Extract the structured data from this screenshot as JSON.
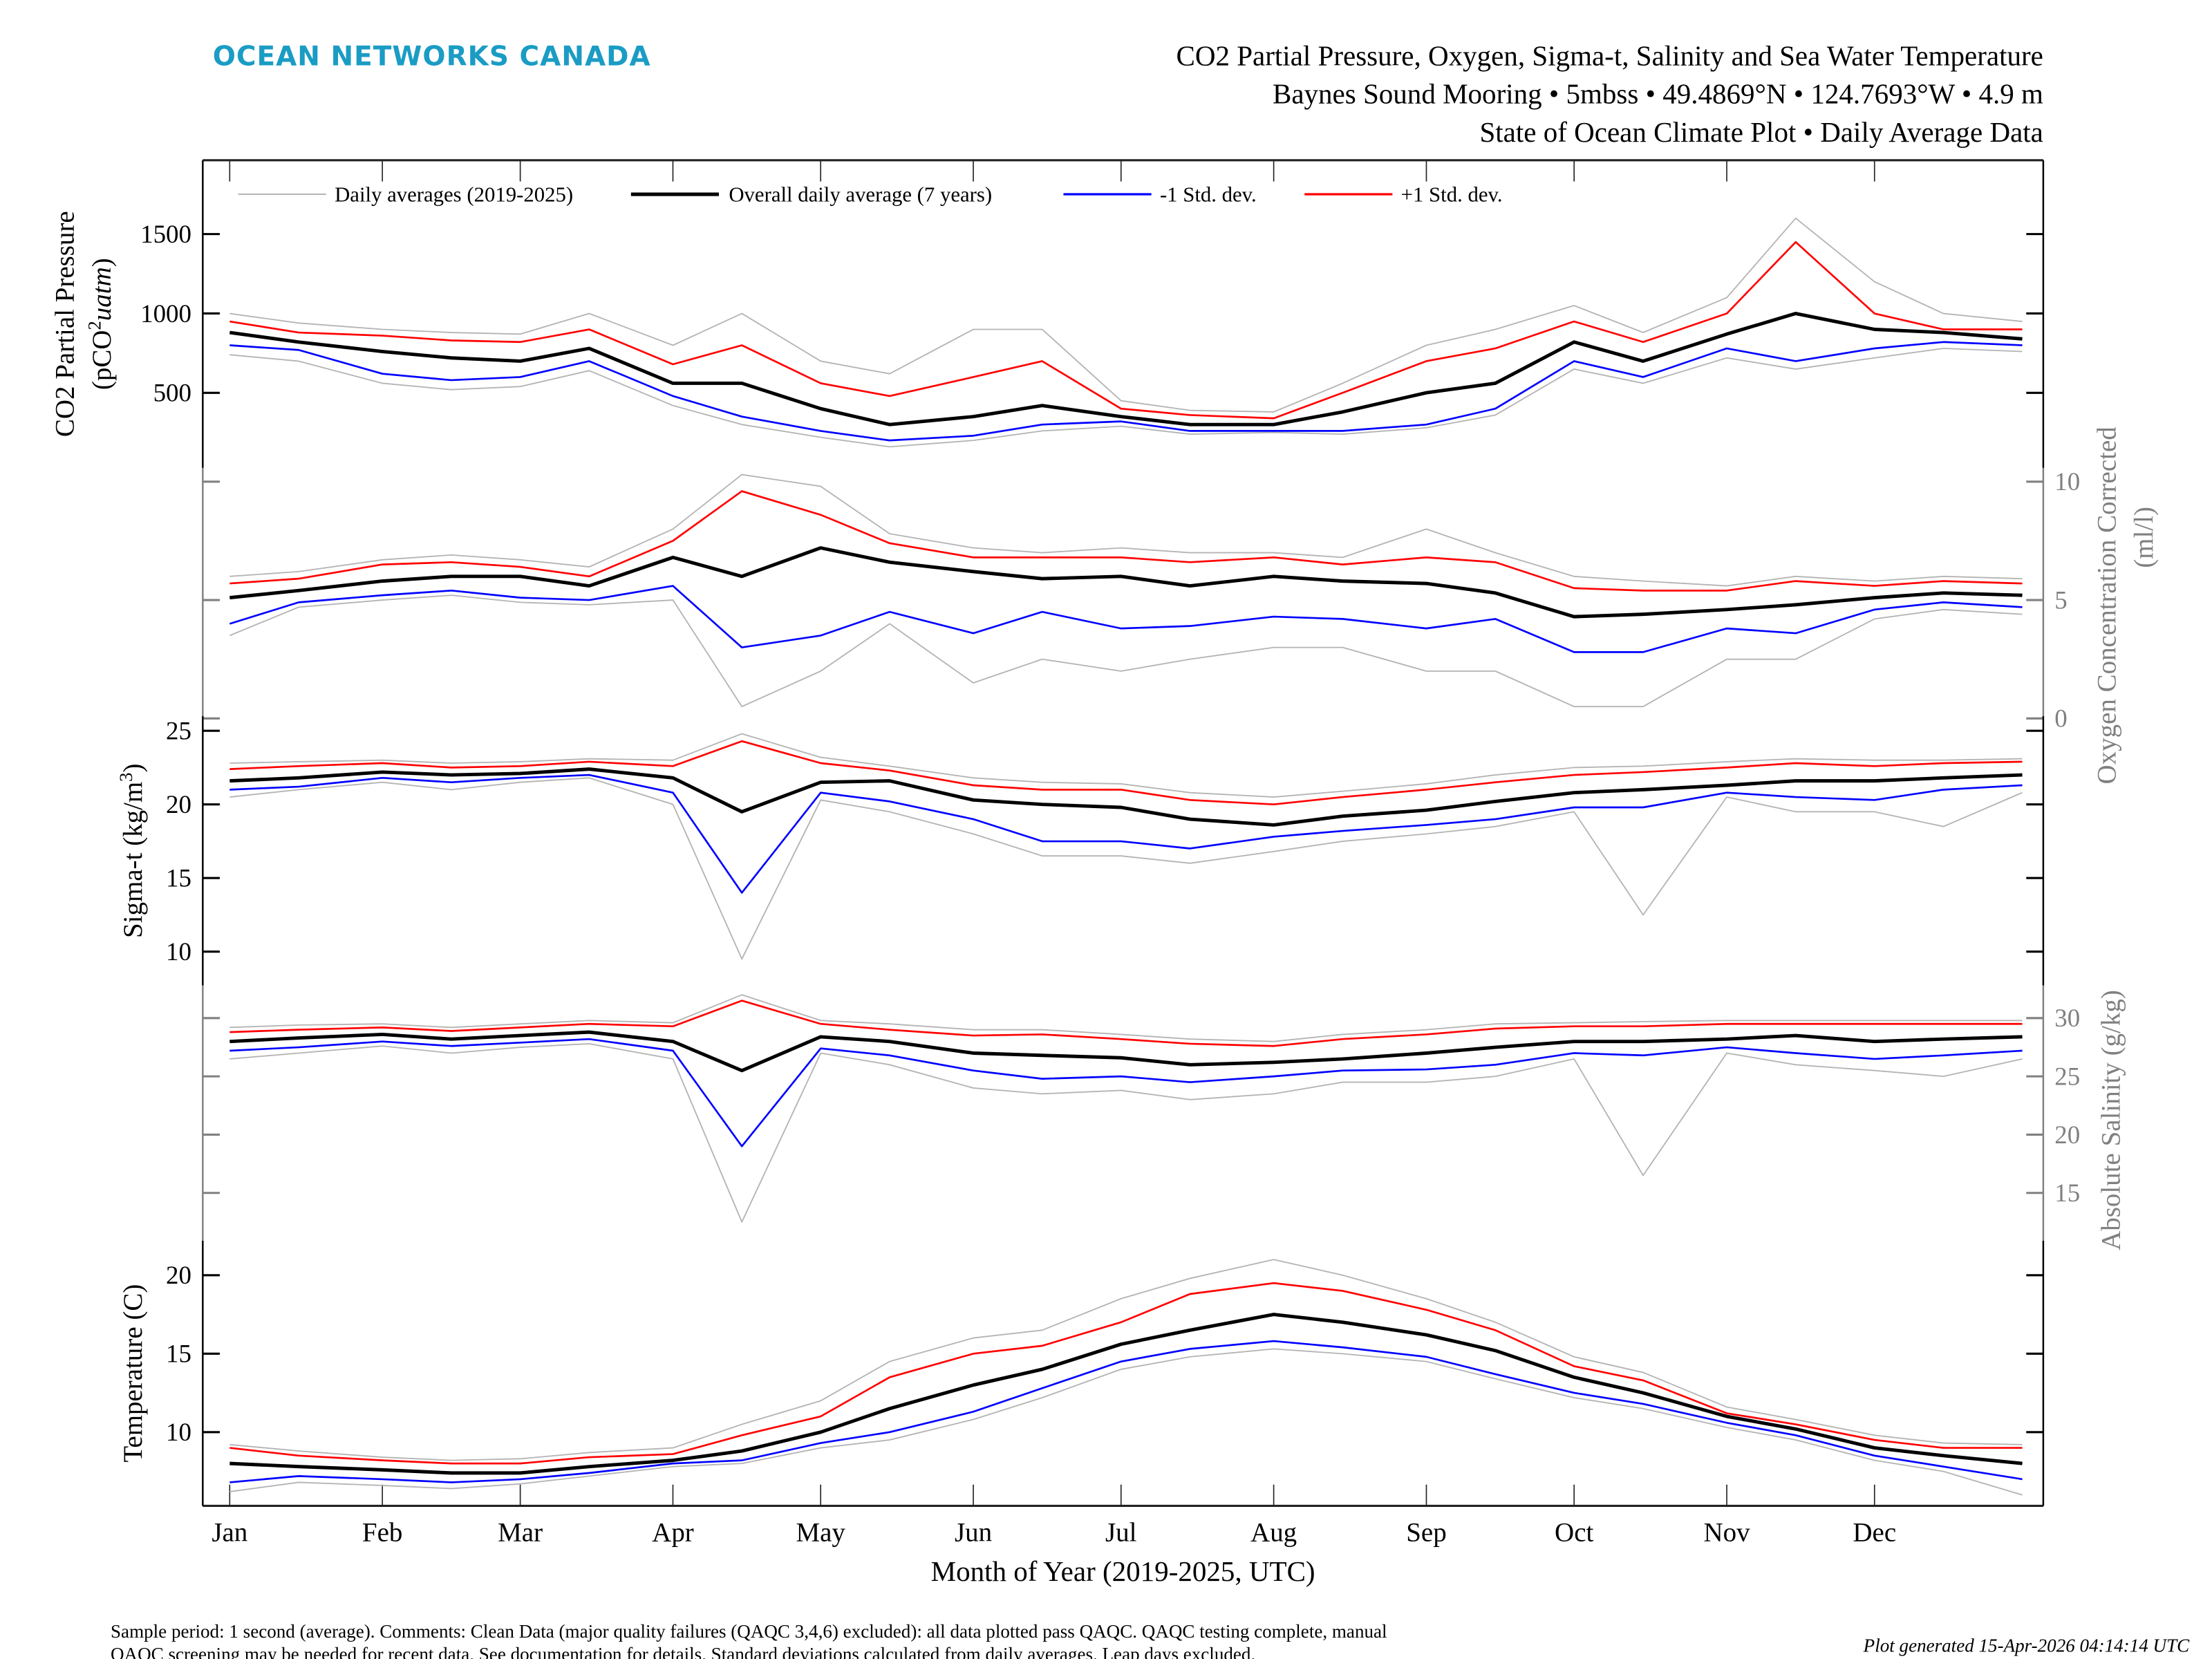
{
  "header": {
    "brand": "OCEAN NETWORKS CANADA",
    "title": "CO2 Partial Pressure, Oxygen, Sigma-t, Salinity and Sea Water Temperature",
    "subtitle": "Baynes Sound Mooring • 5mbss • 49.4869°N • 124.7693°W • 4.9 m",
    "subtitle2": "State of Ocean Climate Plot • Daily Average Data"
  },
  "footer": {
    "note_line1": "Sample period: 1 second (average). Comments: Clean Data (major quality failures (QAQC 3,4,6) excluded): all data plotted pass QAQC. QAQC testing complete, manual",
    "note_line2": "QAQC screening may be needed for recent data. See documentation for details. Standard deviations calculated from daily averages. Leap days excluded.",
    "generated": "Plot generated 15-Apr-2026 04:14:14 UTC"
  },
  "colors": {
    "brand": "#1a9cc4",
    "years": "#b4b4b4",
    "mean": "#000000",
    "minus_sd": "#0000ff",
    "plus_sd": "#ff0000",
    "secondary_axis": "#808080"
  },
  "chart_data": {
    "type": "line",
    "x_label": "Month of Year (2019-2025, UTC)",
    "x_ticks": [
      "Jan",
      "Feb",
      "Mar",
      "Apr",
      "May",
      "Jun",
      "Jul",
      "Aug",
      "Sep",
      "Oct",
      "Nov",
      "Dec"
    ],
    "legend": {
      "placement": "top-left",
      "entries": [
        {
          "key": "years",
          "label": "Daily averages (2019-2025)"
        },
        {
          "key": "mean",
          "label": "Overall daily average (7 years)"
        },
        {
          "key": "minus_sd",
          "label": "-1 Std. dev."
        },
        {
          "key": "plus_sd",
          "label": "+1 Std. dev."
        }
      ]
    },
    "dates": [
      "01-01",
      "01-15",
      "02-01",
      "02-15",
      "03-01",
      "03-15",
      "04-01",
      "04-15",
      "05-01",
      "05-15",
      "06-01",
      "06-15",
      "07-01",
      "07-15",
      "08-01",
      "08-15",
      "09-01",
      "09-15",
      "10-01",
      "10-15",
      "11-01",
      "11-15",
      "12-01",
      "12-15",
      "12-31"
    ],
    "panels": [
      {
        "id": "co2",
        "side": "left",
        "ylabel": "CO2 Partial Pressure",
        "ylabel2_parts": [
          "(pCO",
          "2",
          "uatm",
          ")"
        ],
        "ylim": [
          45,
          1965
        ],
        "yticks": [
          500,
          1000,
          1500
        ],
        "mean": [
          880,
          820,
          760,
          720,
          700,
          780,
          560,
          560,
          400,
          300,
          350,
          420,
          350,
          300,
          300,
          380,
          500,
          560,
          820,
          700,
          870,
          1000,
          900,
          880,
          840
        ],
        "plus_sd": [
          950,
          880,
          860,
          830,
          820,
          900,
          680,
          800,
          560,
          480,
          600,
          700,
          400,
          360,
          340,
          500,
          700,
          780,
          950,
          820,
          1000,
          1450,
          1000,
          900,
          900
        ],
        "minus_sd": [
          800,
          770,
          620,
          580,
          600,
          700,
          480,
          350,
          260,
          200,
          230,
          300,
          320,
          260,
          260,
          260,
          300,
          400,
          700,
          600,
          780,
          700,
          780,
          820,
          800
        ],
        "years_low": [
          740,
          700,
          560,
          520,
          540,
          640,
          420,
          300,
          220,
          160,
          200,
          260,
          290,
          240,
          250,
          240,
          280,
          360,
          650,
          560,
          720,
          650,
          720,
          780,
          760
        ],
        "years_high": [
          1000,
          940,
          900,
          880,
          870,
          1000,
          800,
          1000,
          700,
          620,
          900,
          900,
          450,
          390,
          380,
          560,
          800,
          900,
          1050,
          880,
          1100,
          1600,
          1200,
          1000,
          950
        ]
      },
      {
        "id": "oxygen",
        "side": "right",
        "ylabel": "Oxygen Concentration Corrected",
        "ylabel2": "(ml/l)",
        "ylim": [
          -0.2,
          10.7
        ],
        "yticks": [
          0,
          5,
          10
        ],
        "mean": [
          5.1,
          5.4,
          5.8,
          6.0,
          6.0,
          5.6,
          6.8,
          6.0,
          7.2,
          6.6,
          6.2,
          5.9,
          6.0,
          5.6,
          6.0,
          5.8,
          5.7,
          5.3,
          4.3,
          4.4,
          4.6,
          4.8,
          5.1,
          5.3,
          5.2
        ],
        "plus_sd": [
          5.7,
          5.9,
          6.5,
          6.6,
          6.4,
          6.0,
          7.5,
          9.6,
          8.6,
          7.4,
          6.8,
          6.8,
          6.8,
          6.6,
          6.8,
          6.5,
          6.8,
          6.6,
          5.5,
          5.4,
          5.4,
          5.8,
          5.6,
          5.8,
          5.7
        ],
        "minus_sd": [
          4.0,
          4.9,
          5.2,
          5.4,
          5.1,
          5.0,
          5.6,
          3.0,
          3.5,
          4.5,
          3.6,
          4.5,
          3.8,
          3.9,
          4.3,
          4.2,
          3.8,
          4.2,
          2.8,
          2.8,
          3.8,
          3.6,
          4.6,
          4.9,
          4.7
        ],
        "years_low": [
          3.5,
          4.7,
          5.0,
          5.2,
          4.9,
          4.8,
          5.0,
          0.5,
          2.0,
          4.0,
          1.5,
          2.5,
          2.0,
          2.5,
          3.0,
          3.0,
          2.0,
          2.0,
          0.5,
          0.5,
          2.5,
          2.5,
          4.2,
          4.6,
          4.4
        ],
        "years_high": [
          6.0,
          6.2,
          6.7,
          6.9,
          6.7,
          6.4,
          8.0,
          10.3,
          9.8,
          7.8,
          7.2,
          7.0,
          7.2,
          7.0,
          7.0,
          6.8,
          8.0,
          7.0,
          6.0,
          5.8,
          5.6,
          6.0,
          5.8,
          6.0,
          5.9
        ]
      },
      {
        "id": "sigma",
        "side": "left",
        "ylabel_parts": [
          "Sigma-t (kg/m",
          "3",
          ")"
        ],
        "ylim": [
          7.7,
          26
        ],
        "yticks": [
          10,
          15,
          20,
          25
        ],
        "mean": [
          21.6,
          21.8,
          22.2,
          22.0,
          22.1,
          22.4,
          21.8,
          19.5,
          21.5,
          21.6,
          20.3,
          20.0,
          19.8,
          19.0,
          18.6,
          19.2,
          19.6,
          20.2,
          20.8,
          21.0,
          21.3,
          21.6,
          21.6,
          21.8,
          22.0
        ],
        "plus_sd": [
          22.4,
          22.6,
          22.8,
          22.5,
          22.6,
          22.9,
          22.6,
          24.3,
          22.8,
          22.3,
          21.3,
          21.0,
          21.0,
          20.3,
          20.0,
          20.5,
          21.0,
          21.5,
          22.0,
          22.2,
          22.5,
          22.8,
          22.6,
          22.8,
          22.9
        ],
        "minus_sd": [
          21.0,
          21.2,
          21.8,
          21.5,
          21.8,
          22.0,
          20.8,
          14.0,
          20.8,
          20.2,
          19.0,
          17.5,
          17.5,
          17.0,
          17.8,
          18.2,
          18.6,
          19.0,
          19.8,
          19.8,
          20.8,
          20.5,
          20.3,
          21.0,
          21.3
        ],
        "years_low": [
          20.5,
          21.0,
          21.5,
          21.0,
          21.5,
          21.8,
          20.0,
          9.5,
          20.3,
          19.5,
          18.0,
          16.5,
          16.5,
          16.0,
          16.8,
          17.5,
          18.0,
          18.5,
          19.5,
          12.5,
          20.5,
          19.5,
          19.5,
          18.5,
          20.8
        ],
        "years_high": [
          22.8,
          22.9,
          23.0,
          22.8,
          22.9,
          23.1,
          23.0,
          24.8,
          23.2,
          22.6,
          21.8,
          21.5,
          21.4,
          20.8,
          20.5,
          20.9,
          21.4,
          22.0,
          22.5,
          22.6,
          22.9,
          23.1,
          23.0,
          23.0,
          23.1
        ]
      },
      {
        "id": "salinity",
        "side": "right",
        "ylabel": "Absolute Salinity (g/kg)",
        "ylim": [
          10.9,
          32.8
        ],
        "yticks": [
          15,
          20,
          25,
          30
        ],
        "mean": [
          28.0,
          28.3,
          28.6,
          28.2,
          28.5,
          28.8,
          28.0,
          25.5,
          28.4,
          28.0,
          27.0,
          26.8,
          26.6,
          26.0,
          26.2,
          26.5,
          27.0,
          27.5,
          28.0,
          28.0,
          28.2,
          28.5,
          28.0,
          28.2,
          28.4
        ],
        "plus_sd": [
          28.8,
          29.0,
          29.2,
          28.9,
          29.2,
          29.5,
          29.3,
          31.5,
          29.5,
          29.0,
          28.5,
          28.6,
          28.2,
          27.8,
          27.6,
          28.2,
          28.6,
          29.1,
          29.3,
          29.3,
          29.5,
          29.5,
          29.5,
          29.5,
          29.5
        ],
        "minus_sd": [
          27.2,
          27.5,
          28.0,
          27.6,
          27.9,
          28.2,
          27.2,
          19.0,
          27.4,
          26.8,
          25.5,
          24.8,
          25.0,
          24.5,
          25.0,
          25.5,
          25.6,
          26.0,
          27.0,
          26.8,
          27.5,
          27.0,
          26.5,
          26.8,
          27.2
        ],
        "years_low": [
          26.5,
          27.0,
          27.6,
          27.0,
          27.5,
          27.8,
          26.5,
          12.5,
          27.0,
          26.0,
          24.0,
          23.5,
          23.8,
          23.0,
          23.5,
          24.5,
          24.5,
          25.0,
          26.5,
          16.5,
          27.0,
          26.0,
          25.5,
          25.0,
          26.5
        ],
        "years_high": [
          29.2,
          29.4,
          29.5,
          29.2,
          29.5,
          29.8,
          29.6,
          32.0,
          29.8,
          29.5,
          29.0,
          29.0,
          28.6,
          28.2,
          28.0,
          28.6,
          29.0,
          29.5,
          29.6,
          29.7,
          29.8,
          29.8,
          29.8,
          29.8,
          29.8
        ]
      },
      {
        "id": "temperature",
        "side": "left",
        "ylabel": "Temperature (C)",
        "ylim": [
          5.3,
          22.2
        ],
        "yticks": [
          10,
          15,
          20
        ],
        "mean": [
          8.0,
          7.8,
          7.6,
          7.4,
          7.4,
          7.8,
          8.2,
          8.8,
          10.0,
          11.5,
          13.0,
          14.0,
          15.6,
          16.5,
          17.5,
          17.0,
          16.2,
          15.2,
          13.5,
          12.5,
          11.0,
          10.2,
          9.0,
          8.5,
          8.0
        ],
        "plus_sd": [
          9.0,
          8.5,
          8.2,
          8.0,
          8.0,
          8.4,
          8.6,
          9.8,
          11.0,
          13.5,
          15.0,
          15.5,
          17.0,
          18.8,
          19.5,
          19.0,
          17.8,
          16.5,
          14.2,
          13.3,
          11.2,
          10.5,
          9.5,
          9.0,
          9.0
        ],
        "minus_sd": [
          6.8,
          7.2,
          7.0,
          6.8,
          7.0,
          7.4,
          8.0,
          8.2,
          9.3,
          10.0,
          11.3,
          12.8,
          14.5,
          15.3,
          15.8,
          15.4,
          14.8,
          13.7,
          12.5,
          11.8,
          10.6,
          9.8,
          8.5,
          7.8,
          7.0
        ],
        "years_low": [
          6.2,
          6.8,
          6.6,
          6.4,
          6.7,
          7.2,
          7.8,
          8.0,
          9.0,
          9.5,
          10.8,
          12.2,
          14.0,
          14.8,
          15.3,
          15.0,
          14.5,
          13.4,
          12.2,
          11.5,
          10.3,
          9.5,
          8.2,
          7.5,
          6.0
        ],
        "years_high": [
          9.2,
          8.8,
          8.4,
          8.2,
          8.3,
          8.7,
          9.0,
          10.5,
          12.0,
          14.5,
          16.0,
          16.5,
          18.5,
          19.8,
          21.0,
          20.0,
          18.5,
          17.0,
          14.8,
          13.8,
          11.6,
          10.8,
          9.8,
          9.3,
          9.2
        ]
      }
    ]
  }
}
